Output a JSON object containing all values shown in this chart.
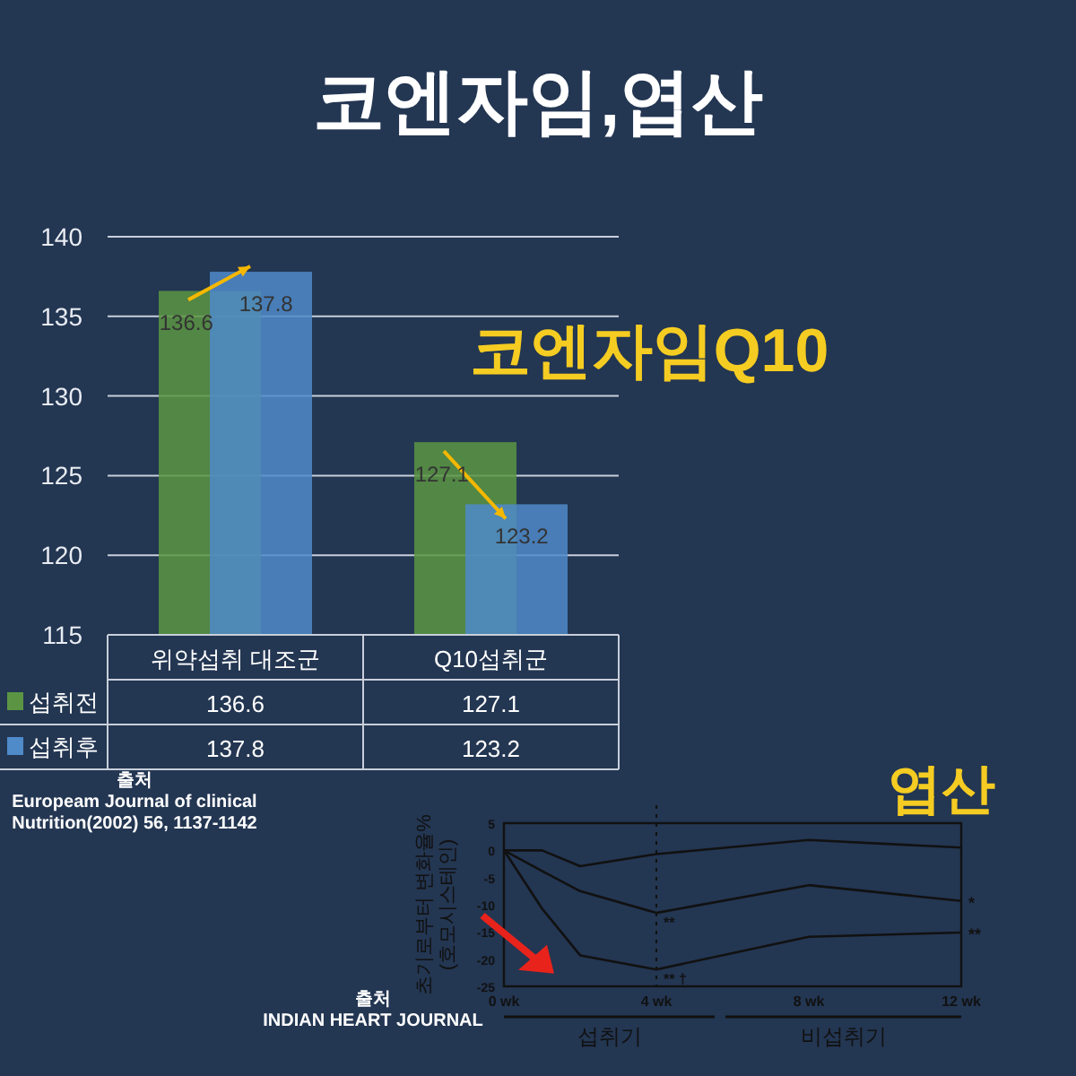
{
  "chart_data": [
    {
      "type": "bar",
      "title": "코엔자임,엽산",
      "subtitle": "코엔자임Q10",
      "categories": [
        "위약섭취 대조군",
        "Q10섭취군"
      ],
      "series": [
        {
          "name": "섭취전",
          "color": "#5b9543",
          "values": [
            136.6,
            127.1
          ]
        },
        {
          "name": "섭취후",
          "color": "#4f8ac9",
          "values": [
            137.8,
            123.2
          ]
        }
      ],
      "ylim": [
        115,
        140
      ],
      "yticks": [
        115,
        120,
        125,
        130,
        135,
        140
      ],
      "grid": "y",
      "data_labels": true,
      "legend": "bottom left",
      "annotations": [
        {
          "text": "136.6",
          "x": "위약섭취 대조군",
          "y": 136.6
        },
        {
          "text": "137.8",
          "x": "위약섭취 대조군",
          "y": 137.8
        },
        {
          "text": "127.1",
          "x": "Q10섭취군",
          "y": 127.1
        },
        {
          "text": "123.2",
          "x": "Q10섭취군",
          "y": 123.2
        },
        "출처\nEuropeam Journal of clinical\nNutrition(2002) 56, 1137-1142"
      ]
    },
    {
      "type": "line",
      "title": "엽산",
      "ylabel": "초기로부터 변화율%\n(호모시스테인)",
      "x": [
        0,
        1,
        2,
        4,
        8,
        12
      ],
      "xlim": [
        0,
        12
      ],
      "xticks": [
        {
          "value": 0,
          "label": "0 wk"
        },
        {
          "value": 4,
          "label": "4 wk"
        },
        {
          "value": 8,
          "label": "8 wk"
        },
        {
          "value": 12,
          "label": "12 wk"
        }
      ],
      "ylim": [
        -25,
        5
      ],
      "yticks": [
        5,
        0,
        -5,
        -10,
        -15,
        -20,
        -25
      ],
      "grid": false,
      "line_style": "solid",
      "series": [
        {
          "color": "#111111",
          "values": [
            0,
            0,
            -2.9,
            -0.7,
            1.9,
            0.5
          ]
        },
        {
          "color": "#111111",
          "values": [
            0,
            -3.8,
            -7.5,
            -11.5,
            -6.4,
            -9.3
          ]
        },
        {
          "color": "#111111",
          "values": [
            0,
            -10.7,
            -19.3,
            -21.9,
            -15.9,
            -15.1
          ]
        }
      ],
      "ref_lines": [
        {
          "axis": "x",
          "value": 4,
          "line_style": "dotted"
        }
      ],
      "annotations": [
        {
          "text": "**",
          "x": 4,
          "y": -11.5
        },
        {
          "text": "** †",
          "x": 4,
          "y": -21.9
        },
        {
          "text": "*",
          "x": 12,
          "y": -9.3
        },
        {
          "text": "**",
          "x": 12,
          "y": -15.1
        },
        "섭취기",
        "비섭취기",
        "출처\nINDIAN HEART JOURNAL"
      ]
    }
  ]
}
